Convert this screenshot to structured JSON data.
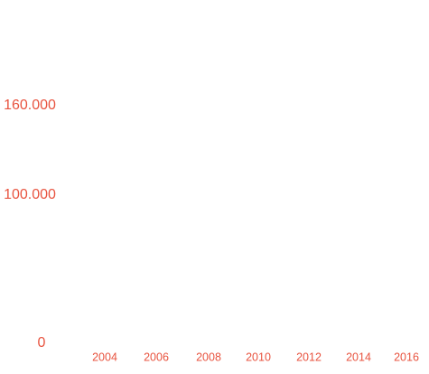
{
  "chart_data": {
    "type": "line",
    "title": "",
    "xlabel": "",
    "ylabel": "",
    "x_ticks": [
      "2004",
      "2006",
      "2008",
      "2010",
      "2012",
      "2014",
      "2016"
    ],
    "y_ticks": [
      "0",
      "100.000",
      "160.000"
    ],
    "y_tick_values": [
      0,
      100000,
      160000
    ],
    "ylim": [
      0,
      160000
    ],
    "xlim": [
      2004,
      2016
    ],
    "grid": false,
    "legend": "none",
    "series": [],
    "colors": {
      "tick_label": "#e8533f"
    }
  }
}
